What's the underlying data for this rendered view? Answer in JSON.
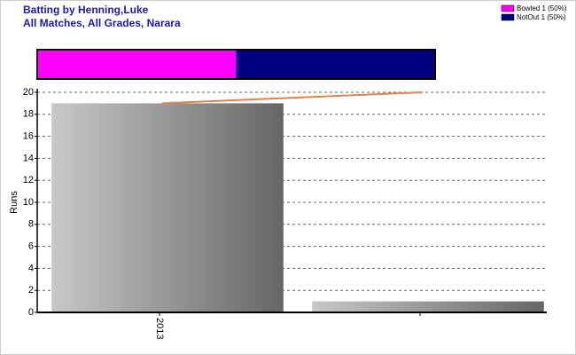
{
  "chart_data": {
    "type": "bar",
    "title": "Batting by Henning,Luke",
    "subtitle": "All Matches, All Grades, Narara",
    "y_label": "Runs",
    "categories": [
      "2013",
      null
    ],
    "series": [
      {
        "type": "bar",
        "values": [
          19,
          1
        ]
      },
      {
        "type": "line",
        "color": "#e8804a",
        "values": [
          19,
          20
        ]
      }
    ],
    "ylim": [
      0,
      20
    ],
    "yticks": [
      0,
      2,
      4,
      6,
      8,
      10,
      12,
      14,
      16,
      18,
      20
    ],
    "grid": true,
    "dismissals": [
      {
        "label": "Bowled 1 (50%)",
        "color": "#ff00ff",
        "value": 50
      },
      {
        "label": "NotOut 1 (50%)",
        "color": "#000080",
        "value": 50
      }
    ]
  }
}
